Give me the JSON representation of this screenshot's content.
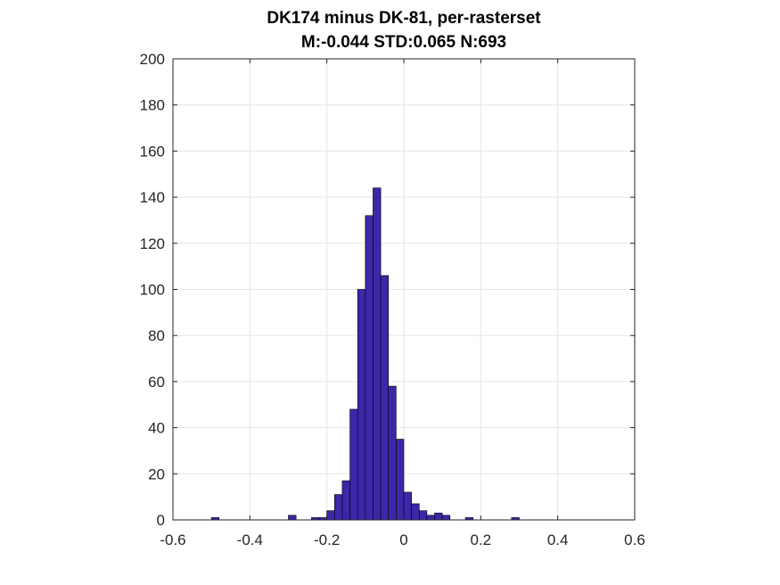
{
  "chart_data": {
    "type": "bar",
    "title": "DK174 minus DK-81, per-rasterset",
    "subtitle": "M:-0.044 STD:0.065 N:693",
    "xlabel": "",
    "ylabel": "",
    "xlim": [
      -0.6,
      0.6
    ],
    "ylim": [
      0,
      200
    ],
    "xticks": [
      -0.6,
      -0.4,
      -0.2,
      0,
      0.2,
      0.4,
      0.6
    ],
    "xtick_labels": [
      "-0.6",
      "-0.4",
      "-0.2",
      "0",
      "0.2",
      "0.4",
      "0.6"
    ],
    "yticks": [
      0,
      20,
      40,
      60,
      80,
      100,
      120,
      140,
      160,
      180,
      200
    ],
    "ytick_labels": [
      "0",
      "20",
      "40",
      "60",
      "80",
      "100",
      "120",
      "140",
      "160",
      "180",
      "200"
    ],
    "grid": true,
    "bar_color": "#3d26a8",
    "bar_edge_color": "#000000",
    "bin_width": 0.02,
    "bin_start": -0.5,
    "values": [
      1,
      0,
      0,
      0,
      0,
      0,
      0,
      0,
      0,
      0,
      2,
      0,
      0,
      1,
      1,
      4,
      11,
      17,
      48,
      100,
      132,
      144,
      106,
      58,
      35,
      12,
      7,
      4,
      2,
      3,
      2,
      0,
      0,
      1,
      0,
      0,
      0,
      0,
      0,
      1,
      0,
      0,
      0,
      0,
      0,
      0,
      0,
      0,
      0,
      0,
      0
    ]
  }
}
